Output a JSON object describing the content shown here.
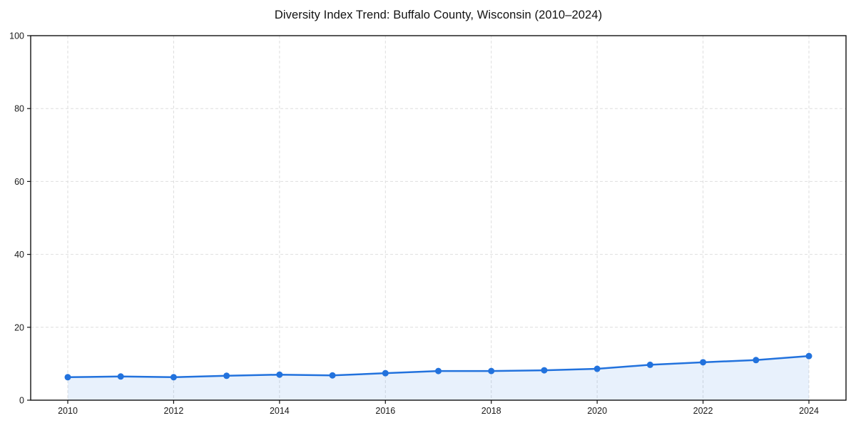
{
  "chart_data": {
    "type": "line",
    "title": "Diversity Index Trend: Buffalo County, Wisconsin (2010–2024)",
    "xlabel": "",
    "ylabel": "",
    "x": [
      2010,
      2011,
      2012,
      2013,
      2014,
      2015,
      2016,
      2017,
      2018,
      2019,
      2020,
      2021,
      2022,
      2023,
      2024
    ],
    "series": [
      {
        "name": "Diversity Index",
        "values": [
          6.3,
          6.5,
          6.3,
          6.7,
          7.0,
          6.8,
          7.4,
          8.0,
          8.0,
          8.2,
          8.6,
          9.7,
          10.4,
          11.0,
          12.1
        ]
      }
    ],
    "ylim": [
      0,
      100
    ],
    "yticks": [
      0,
      20,
      40,
      60,
      80,
      100
    ],
    "xticks": [
      2010,
      2012,
      2014,
      2016,
      2018,
      2020,
      2022,
      2024
    ],
    "grid": true,
    "grid_style": "dashed",
    "legend_position": "none",
    "marker": "circle",
    "line_color": "#2272dd",
    "fill_color": "rgba(34, 114, 221, 0.10)",
    "grid_color": "#dedede",
    "axis_color": "#111111",
    "tick_label_color": "#1a1a1a"
  }
}
